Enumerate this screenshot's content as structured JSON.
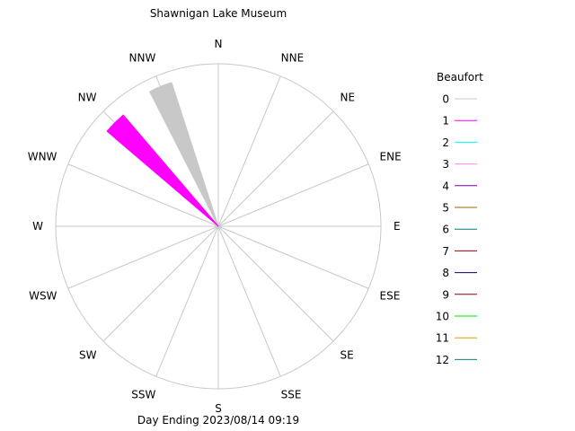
{
  "chart_data": {
    "type": "wind-rose",
    "title": "Shawnigan Lake Museum",
    "xlabel": "Day Ending 2023/08/14 09:19",
    "directions": [
      "N",
      "NNE",
      "NE",
      "ENE",
      "E",
      "ESE",
      "SE",
      "SSE",
      "S",
      "SSW",
      "SW",
      "WSW",
      "W",
      "WNW",
      "NW",
      "NNW"
    ],
    "legend": {
      "title": "Beaufort",
      "placement": "right",
      "items": [
        {
          "label": "0",
          "color": "#c8c8c8"
        },
        {
          "label": "1",
          "color": "#ff00ff"
        },
        {
          "label": "2",
          "color": "#00ffff"
        },
        {
          "label": "3",
          "color": "#ff88ff"
        },
        {
          "label": "4",
          "color": "#8000a0"
        },
        {
          "label": "5",
          "color": "#a06400"
        },
        {
          "label": "6",
          "color": "#008080"
        },
        {
          "label": "7",
          "color": "#a00000"
        },
        {
          "label": "8",
          "color": "#000080"
        },
        {
          "label": "9",
          "color": "#900000"
        },
        {
          "label": "10",
          "color": "#00e000"
        },
        {
          "label": "11",
          "color": "#e0a000"
        },
        {
          "label": "12",
          "color": "#008888"
        }
      ]
    },
    "rmax": 100,
    "wedges": [
      {
        "direction": "NNW",
        "beaufort": 0,
        "value": 93
      },
      {
        "direction": "NW",
        "beaufort": 1,
        "value": 90
      }
    ]
  }
}
